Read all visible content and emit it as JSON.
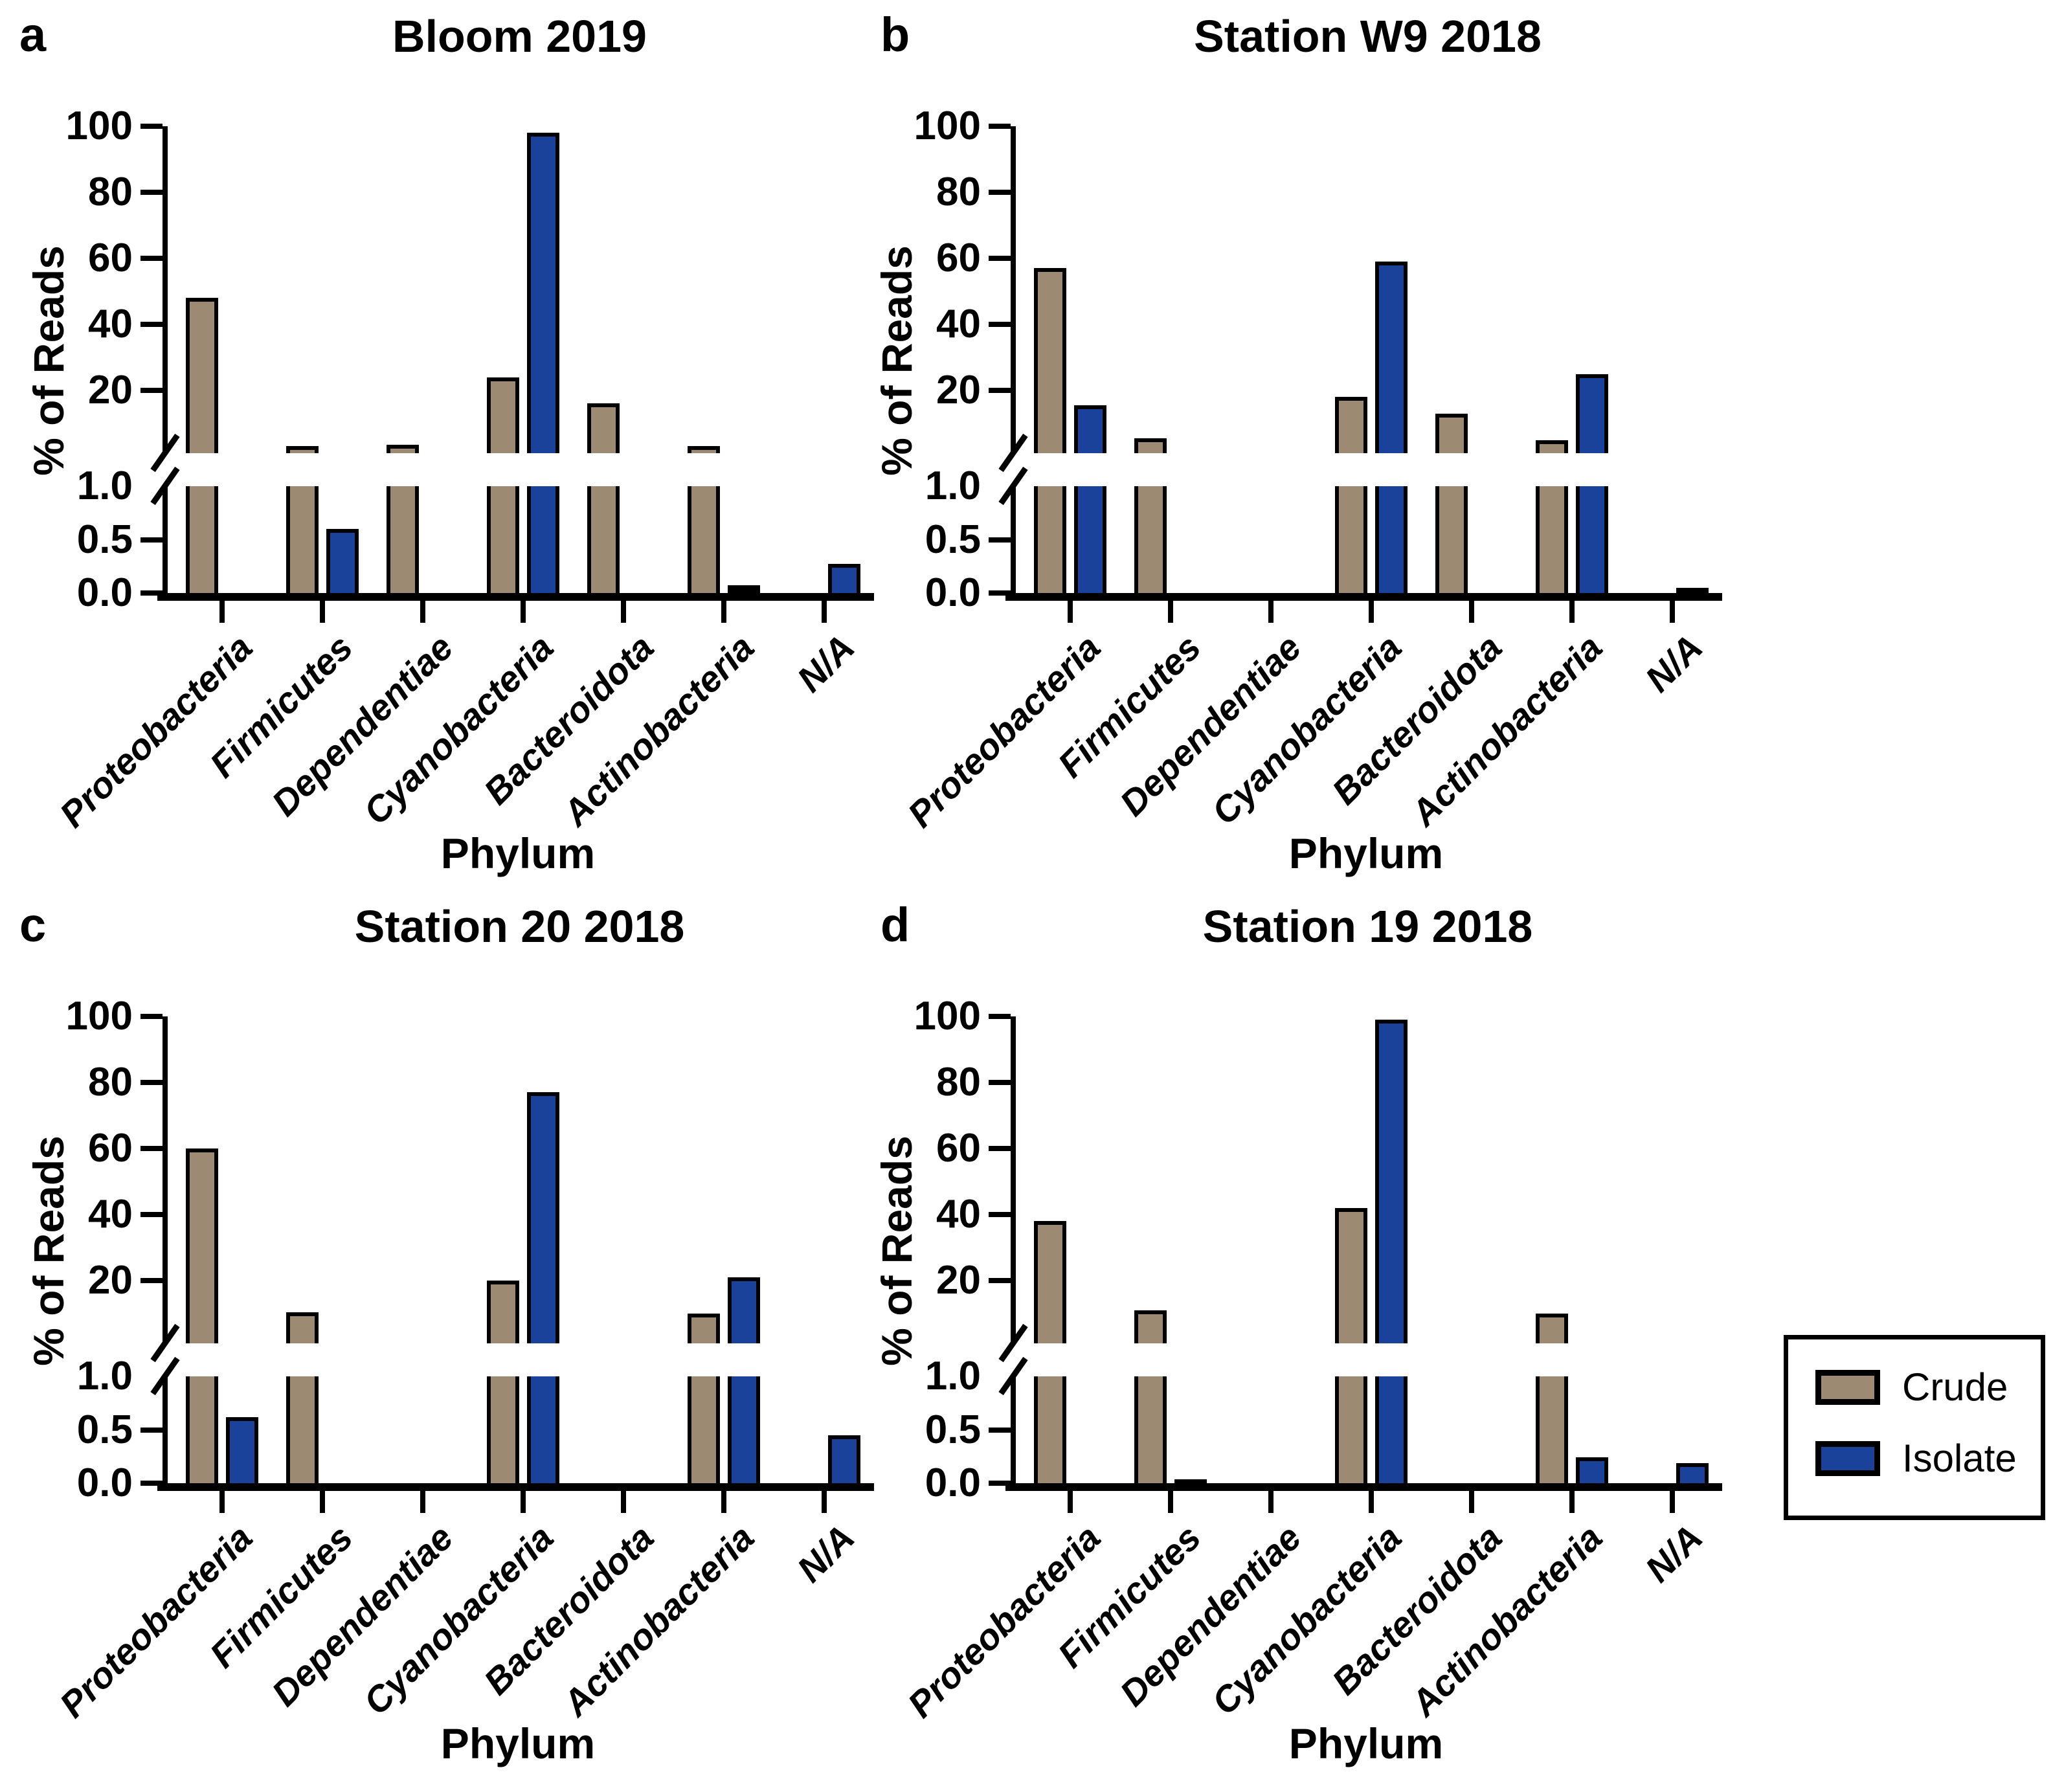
{
  "figure": {
    "kind": "four-panel broken-axis bar figure"
  },
  "panels": [
    {
      "letter": "a",
      "title": "Bloom 2019"
    },
    {
      "letter": "b",
      "title": "Station W9 2018"
    },
    {
      "letter": "c",
      "title": "Station 20 2018"
    },
    {
      "letter": "d",
      "title": "Station 19 2018"
    }
  ],
  "axes": {
    "x_label": "Phylum",
    "y_label": "% of Reads",
    "upper_tick_labels": [
      "20",
      "40",
      "60",
      "80",
      "100"
    ],
    "lower_tick_labels": [
      "0.0",
      "0.5",
      "1.0"
    ],
    "categories": [
      "Proteobacteria",
      "Firmicutes",
      "Dependentiae",
      "Cyanobacteria",
      "Bacteroidota",
      "Actinobacteria",
      "N/A"
    ]
  },
  "legend": {
    "items": [
      {
        "label": "Crude",
        "color": "#9C8A72"
      },
      {
        "label": "Isolate",
        "color": "#1B429B"
      }
    ]
  },
  "colors": {
    "crude": "#9C8A72",
    "isolate": "#1B429B",
    "axis": "#000000",
    "background": "#FFFFFF"
  },
  "chart_data": [
    {
      "type": "bar",
      "panel": "a",
      "title": "Bloom 2019",
      "xlabel": "Phylum",
      "ylabel": "% of Reads",
      "categories": [
        "Proteobacteria",
        "Firmicutes",
        "Dependentiae",
        "Cyanobacteria",
        "Bacteroidota",
        "Actinobacteria",
        "N/A"
      ],
      "y_axis": {
        "style": "broken",
        "lower_range": [
          0,
          1.0
        ],
        "lower_ticks": [
          0.0,
          0.5,
          1.0
        ],
        "upper_range": [
          1,
          100
        ],
        "upper_ticks": [
          20,
          40,
          60,
          80,
          100
        ]
      },
      "series": [
        {
          "name": "Crude",
          "color": "#9C8A72",
          "values": [
            48,
            2,
            3.5,
            24,
            16,
            2,
            0
          ]
        },
        {
          "name": "Isolate",
          "color": "#1B429B",
          "values": [
            0,
            0.6,
            0,
            98,
            0,
            0.07,
            0.27
          ]
        }
      ],
      "legend_position": "shared-outside-right"
    },
    {
      "type": "bar",
      "panel": "b",
      "title": "Station W9 2018",
      "xlabel": "Phylum",
      "ylabel": "% of Reads",
      "categories": [
        "Proteobacteria",
        "Firmicutes",
        "Dependentiae",
        "Cyanobacteria",
        "Bacteroidota",
        "Actinobacteria",
        "N/A"
      ],
      "y_axis": {
        "style": "broken",
        "lower_range": [
          0,
          1.0
        ],
        "lower_ticks": [
          0.0,
          0.5,
          1.0
        ],
        "upper_range": [
          1,
          100
        ],
        "upper_ticks": [
          20,
          40,
          60,
          80,
          100
        ]
      },
      "series": [
        {
          "name": "Crude",
          "color": "#9C8A72",
          "values": [
            57,
            5.5,
            0,
            18,
            13,
            5,
            0
          ]
        },
        {
          "name": "Isolate",
          "color": "#1B429B",
          "values": [
            15.5,
            0,
            0,
            59,
            0,
            25,
            0.05
          ]
        }
      ],
      "legend_position": "shared-outside-right"
    },
    {
      "type": "bar",
      "panel": "c",
      "title": "Station 20 2018",
      "xlabel": "Phylum",
      "ylabel": "% of Reads",
      "categories": [
        "Proteobacteria",
        "Firmicutes",
        "Dependentiae",
        "Cyanobacteria",
        "Bacteroidota",
        "Actinobacteria",
        "N/A"
      ],
      "y_axis": {
        "style": "broken",
        "lower_range": [
          0,
          1.0
        ],
        "lower_ticks": [
          0.0,
          0.5,
          1.0
        ],
        "upper_range": [
          1,
          100
        ],
        "upper_ticks": [
          20,
          40,
          60,
          80,
          100
        ]
      },
      "series": [
        {
          "name": "Crude",
          "color": "#9C8A72",
          "values": [
            60,
            10.5,
            0,
            20,
            0,
            10,
            0
          ]
        },
        {
          "name": "Isolate",
          "color": "#1B429B",
          "values": [
            0.62,
            0,
            0,
            77,
            0,
            21,
            0.45
          ]
        }
      ],
      "legend_position": "shared-outside-right"
    },
    {
      "type": "bar",
      "panel": "d",
      "title": "Station 19 2018",
      "xlabel": "Phylum",
      "ylabel": "% of Reads",
      "categories": [
        "Proteobacteria",
        "Firmicutes",
        "Dependentiae",
        "Cyanobacteria",
        "Bacteroidota",
        "Actinobacteria",
        "N/A"
      ],
      "y_axis": {
        "style": "broken",
        "lower_range": [
          0,
          1.0
        ],
        "lower_ticks": [
          0.0,
          0.5,
          1.0
        ],
        "upper_range": [
          1,
          100
        ],
        "upper_ticks": [
          20,
          40,
          60,
          80,
          100
        ]
      },
      "series": [
        {
          "name": "Crude",
          "color": "#9C8A72",
          "values": [
            38,
            11,
            0,
            42,
            0,
            10,
            0
          ]
        },
        {
          "name": "Isolate",
          "color": "#1B429B",
          "values": [
            0,
            0.03,
            0,
            99,
            0,
            0.24,
            0.19
          ]
        }
      ],
      "legend_position": "shared-outside-right"
    }
  ]
}
